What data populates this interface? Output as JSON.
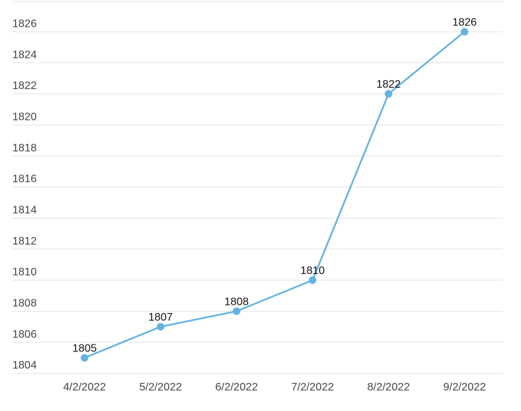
{
  "chart_data": {
    "type": "line",
    "categories": [
      "4/2/2022",
      "5/2/2022",
      "6/2/2022",
      "7/2/2022",
      "8/2/2022",
      "9/2/2022"
    ],
    "series": [
      {
        "color": "#63b3e1",
        "values": [
          1805,
          1807,
          1808,
          1810,
          1822,
          1826
        ]
      }
    ],
    "ylim": [
      1804,
      1828
    ],
    "yticks": [
      1804,
      1806,
      1808,
      1810,
      1812,
      1814,
      1816,
      1818,
      1820,
      1822,
      1824,
      1826
    ],
    "grid": true
  }
}
